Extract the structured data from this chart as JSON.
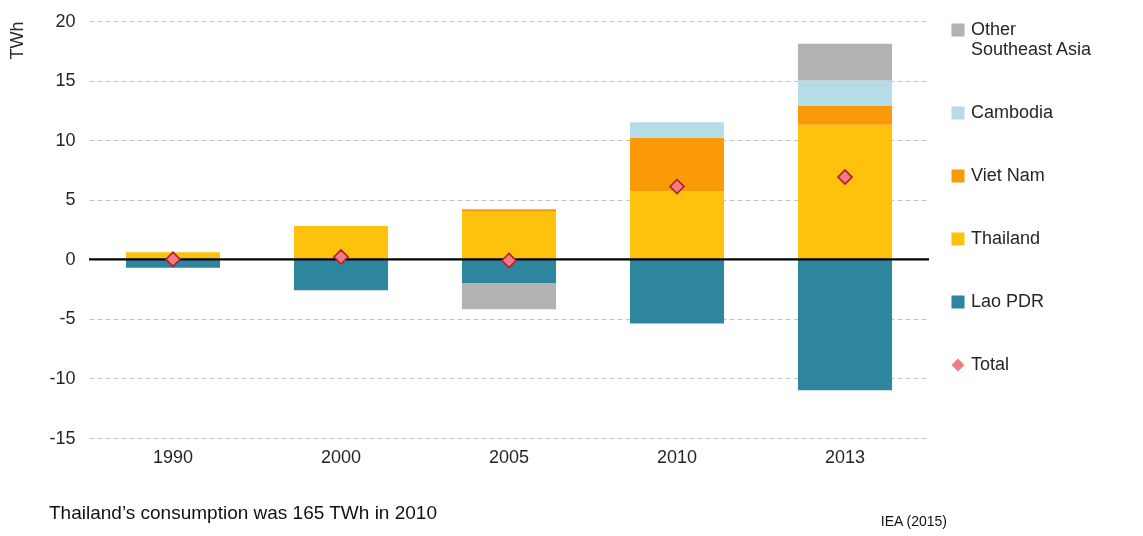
{
  "chart_data": {
    "type": "bar",
    "stacked": true,
    "categories": [
      "1990",
      "2000",
      "2005",
      "2010",
      "2013"
    ],
    "ylabel": "TWh",
    "ylim": [
      -15,
      20
    ],
    "yticks": [
      -15,
      -10,
      -5,
      0,
      5,
      10,
      15,
      20
    ],
    "grid": "y",
    "legend": "right",
    "marker": "diamond",
    "series": [
      {
        "name": "Lao PDR",
        "color": "#2e869e",
        "values": [
          -0.7,
          -2.6,
          -2.0,
          -5.4,
          -11.0
        ]
      },
      {
        "name": "Thailand",
        "color": "#fec20c",
        "values": [
          0.6,
          2.8,
          4.0,
          5.7,
          11.3
        ]
      },
      {
        "name": "Viet Nam",
        "color": "#fb9a09",
        "values": [
          null,
          null,
          0.2,
          4.5,
          1.6
        ]
      },
      {
        "name": "Cambodia",
        "color": "#b4dde8",
        "values": [
          null,
          null,
          null,
          1.3,
          2.1
        ]
      },
      {
        "name": "Other Southeast Asia",
        "color": "#b2b2b2",
        "values": [
          null,
          null,
          -2.2,
          null,
          3.1
        ]
      },
      {
        "name": "Total",
        "type": "scatter",
        "color": "#f47a84",
        "values": [
          0.0,
          0.2,
          -0.1,
          6.1,
          6.9
        ]
      }
    ],
    "ref_lines": [
      {
        "axis": "y",
        "value": 0,
        "color": "#000000"
      }
    ],
    "annotations": [
      "Thailand’s consumption was 165 TWh in 2010",
      "IEA (2015)"
    ]
  }
}
